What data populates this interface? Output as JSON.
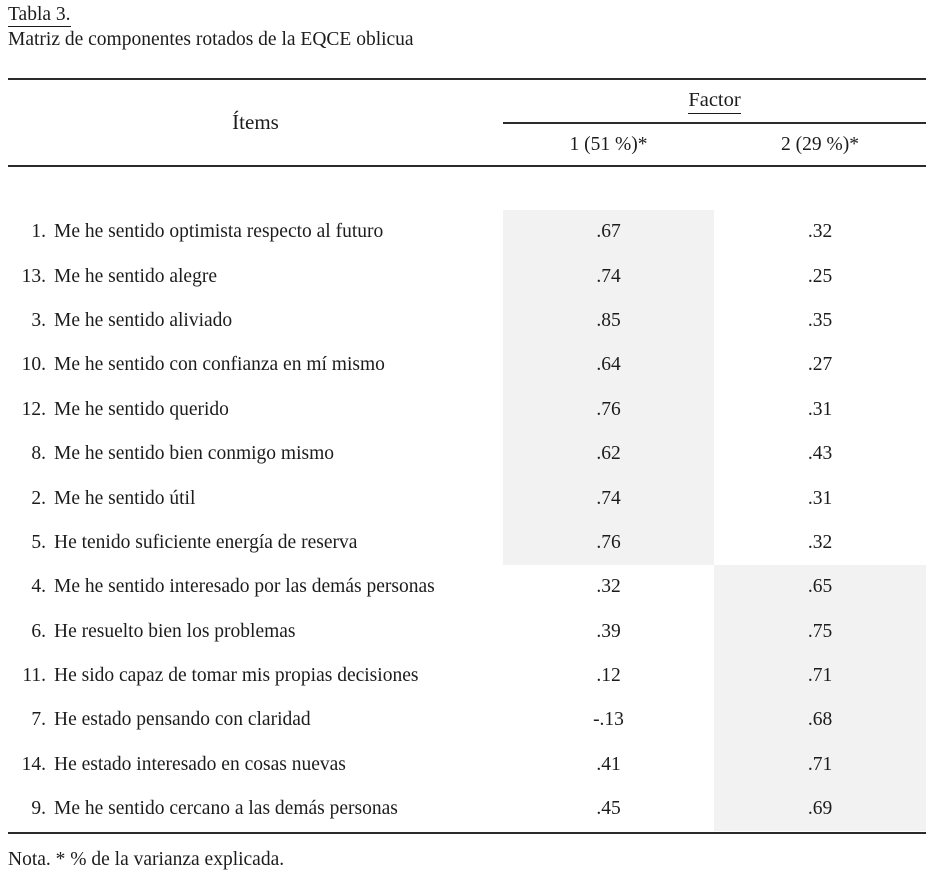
{
  "caption": {
    "label": "Tabla 3.",
    "title": "Matriz de componentes rotados de la EQCE oblicua"
  },
  "table": {
    "items_header": "Ítems",
    "factor_header": "Factor",
    "factor_columns": [
      "1 (51 %)*",
      "2 (29 %)*"
    ],
    "rows": [
      {
        "num": "1.",
        "label": "Me he sentido optimista respecto al futuro",
        "f1": ".67",
        "f2": ".32",
        "highlight": "f1"
      },
      {
        "num": "13.",
        "label": "Me he sentido alegre",
        "f1": ".74",
        "f2": ".25",
        "highlight": "f1"
      },
      {
        "num": "3.",
        "label": "Me he sentido aliviado",
        "f1": ".85",
        "f2": ".35",
        "highlight": "f1"
      },
      {
        "num": "10.",
        "label": "Me he sentido con confianza en mí mismo",
        "f1": ".64",
        "f2": ".27",
        "highlight": "f1"
      },
      {
        "num": "12.",
        "label": "Me he sentido querido",
        "f1": ".76",
        "f2": ".31",
        "highlight": "f1"
      },
      {
        "num": "8.",
        "label": "Me he sentido bien conmigo mismo",
        "f1": ".62",
        "f2": ".43",
        "highlight": "f1"
      },
      {
        "num": "2.",
        "label": "Me he sentido útil",
        "f1": ".74",
        "f2": ".31",
        "highlight": "f1"
      },
      {
        "num": "5.",
        "label": "He tenido suficiente energía de reserva",
        "f1": ".76",
        "f2": ".32",
        "highlight": "f1"
      },
      {
        "num": "4.",
        "label": "Me he sentido interesado por las demás personas",
        "f1": ".32",
        "f2": ".65",
        "highlight": "f2"
      },
      {
        "num": "6.",
        "label": "He resuelto bien los problemas",
        "f1": ".39",
        "f2": ".75",
        "highlight": "f2"
      },
      {
        "num": "11.",
        "label": "He sido capaz de tomar mis propias decisiones",
        "f1": ".12",
        "f2": ".71",
        "highlight": "f2"
      },
      {
        "num": "7.",
        "label": "He estado pensando con claridad",
        "f1": "-.13",
        "f2": ".68",
        "highlight": "f2"
      },
      {
        "num": "14.",
        "label": "He estado interesado en cosas nuevas",
        "f1": ".41",
        "f2": ".71",
        "highlight": "f2"
      },
      {
        "num": "9.",
        "label": "Me he sentido cercano a las demás personas",
        "f1": ".45",
        "f2": ".69",
        "highlight": "f2"
      }
    ]
  },
  "note": "Nota. * % de la varianza explicada.",
  "colors": {
    "shading": "#f2f2f2",
    "text": "#1c1c1c",
    "rule": "#2b2b2b"
  }
}
